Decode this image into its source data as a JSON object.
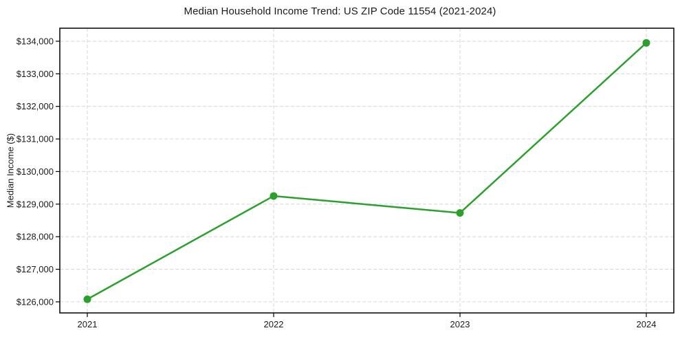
{
  "chart_data": {
    "type": "line",
    "title": "Median Household Income Trend: US ZIP Code 11554 (2021-2024)",
    "xlabel": "",
    "ylabel": "Median Income ($)",
    "categories": [
      "2021",
      "2022",
      "2023",
      "2024"
    ],
    "series": [
      {
        "name": "Median Household Income",
        "values": [
          126080,
          129250,
          128730,
          133950
        ]
      }
    ],
    "y_ticks": [
      {
        "value": 126000,
        "label": "$126,000"
      },
      {
        "value": 127000,
        "label": "$127,000"
      },
      {
        "value": 128000,
        "label": "$128,000"
      },
      {
        "value": 129000,
        "label": "$129,000"
      },
      {
        "value": 130000,
        "label": "$130,000"
      },
      {
        "value": 131000,
        "label": "$131,000"
      },
      {
        "value": 132000,
        "label": "$132,000"
      },
      {
        "value": 133000,
        "label": "$133,000"
      },
      {
        "value": 134000,
        "label": "$134,000"
      }
    ],
    "ylim": [
      125660,
      134400
    ],
    "grid": true,
    "grid_dashed": true,
    "legend": "none",
    "style": {
      "line_color": "#2ca02c",
      "marker_color": "#2ca02c",
      "grid_color": "#d6d6d6",
      "axis_color": "#000000",
      "text_color": "#1a1a1a",
      "background": "#ffffff"
    }
  }
}
